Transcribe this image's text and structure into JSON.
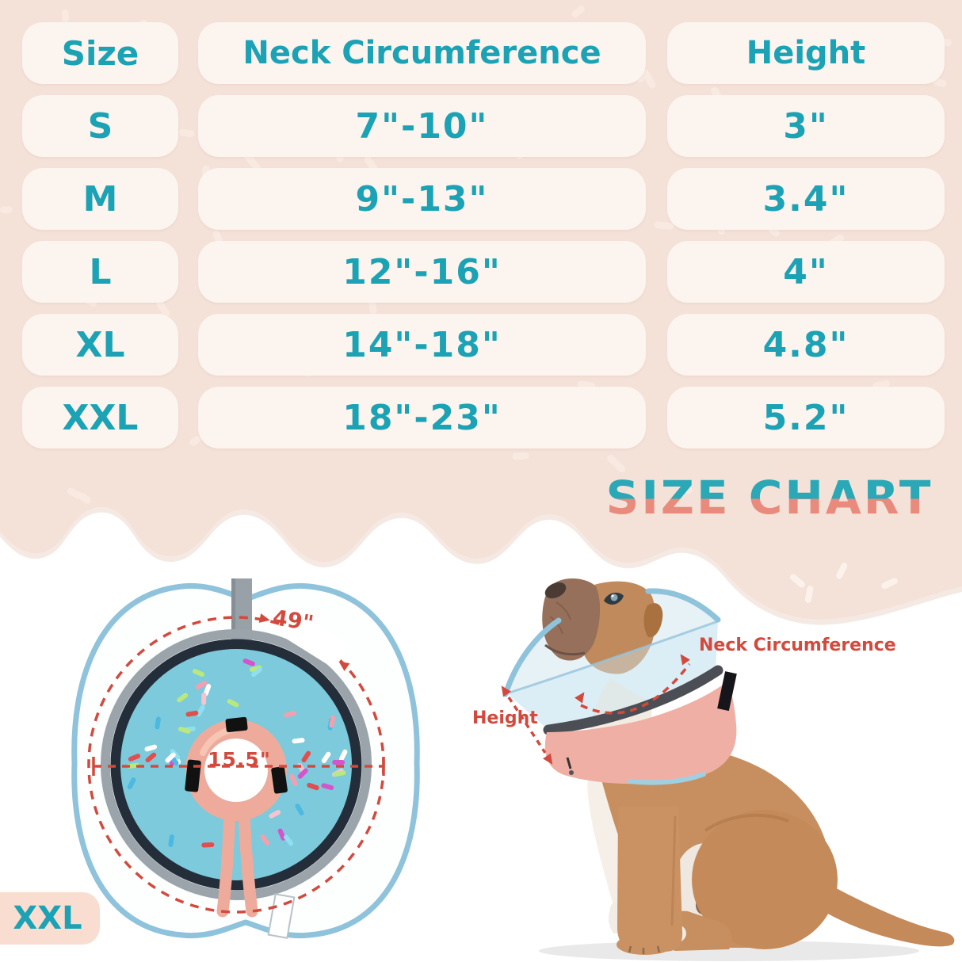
{
  "table": {
    "columns": [
      "Size",
      "Neck Circumference",
      "Height"
    ],
    "rows": [
      {
        "size": "S",
        "neck": "7\"-10\"",
        "height": "3\""
      },
      {
        "size": "M",
        "neck": "9\"-13\"",
        "height": "3.4\""
      },
      {
        "size": "L",
        "neck": "12\"-16\"",
        "height": "4\""
      },
      {
        "size": "XL",
        "neck": "14\"-18\"",
        "height": "4.8\""
      },
      {
        "size": "XXL",
        "neck": "18\"-23\"",
        "height": "5.2\""
      }
    ]
  },
  "title": {
    "text": "SIZE CHART"
  },
  "diagram": {
    "outer_circumference": "49\"",
    "inner_diameter": "15.5\"",
    "size_label": "XXL"
  },
  "dog_annotations": {
    "neck": "Neck Circumference",
    "height": "Height"
  },
  "colors": {
    "teal": "#1ba2b4",
    "red": "#d24a3e",
    "title_teal": "#2ba8b6",
    "title_coral": "#e98b7c",
    "bg_pink": "#f4e1d8",
    "bg_sprinkle": "#f8ebe2",
    "pill": "#fbf4ef",
    "badge_pink": "#f8ddd0",
    "collar_pink": "#f0afa5",
    "trim_blue": "#8fc3dc",
    "donut_blue": "#7ccadb",
    "navy": "#242e3a",
    "ring_gray": "#9aa4aa",
    "fur": "#c78f60",
    "sprinkles": [
      "#e44d4d",
      "#ffffff",
      "#f2a0b0",
      "#b9e87e",
      "#4bb9e2",
      "#d653cc",
      "#8fe0ee",
      "#f6c3cf"
    ]
  },
  "chart_data": {
    "type": "table",
    "title": "SIZE CHART",
    "columns": [
      "Size",
      "Neck Circumference",
      "Height"
    ],
    "rows": [
      [
        "S",
        "7\"-10\"",
        "3\""
      ],
      [
        "M",
        "9\"-13\"",
        "3.4\""
      ],
      [
        "L",
        "12\"-16\"",
        "4\""
      ],
      [
        "XL",
        "14\"-18\"",
        "4.8\""
      ],
      [
        "XXL",
        "18\"-23\"",
        "5.2\""
      ]
    ],
    "annotations": {
      "shown_size": "XXL",
      "outer_edge_circumference": "49\"",
      "inner_hole_diameter": "15.5\"",
      "photo_labels": [
        "Neck Circumference",
        "Height"
      ]
    }
  }
}
